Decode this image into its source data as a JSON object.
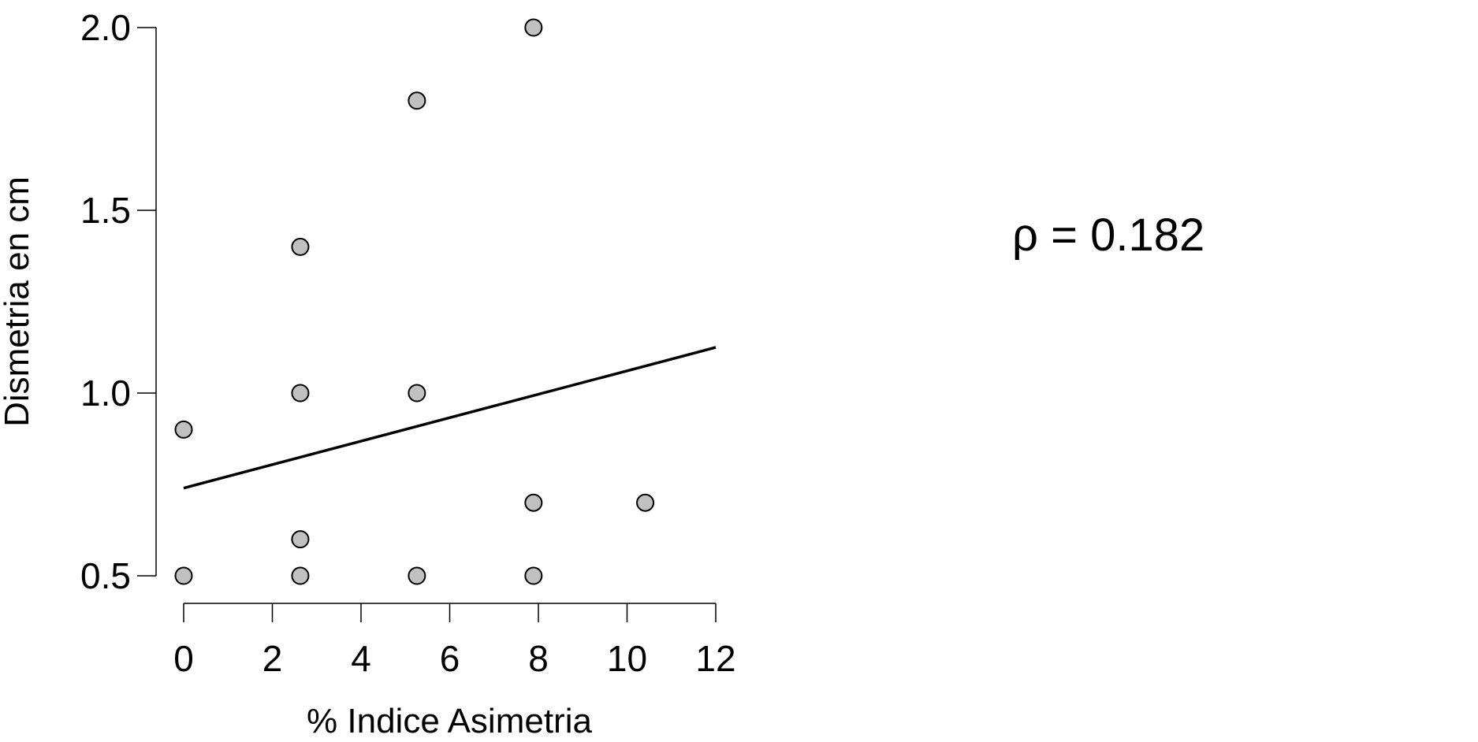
{
  "chart_data": {
    "type": "scatter",
    "xlabel": "% Indice Asimetria",
    "ylabel": "Dismetria en cm",
    "xlim": [
      0,
      12
    ],
    "ylim": [
      0.5,
      2.0
    ],
    "x_ticks": [
      0,
      2,
      4,
      6,
      8,
      10,
      12
    ],
    "y_ticks": [
      0.5,
      1.0,
      1.5,
      2.0
    ],
    "x_tick_labels": [
      "0",
      "2",
      "4",
      "6",
      "8",
      "10",
      "12"
    ],
    "y_tick_labels": [
      "0.5",
      "1.0",
      "1.5",
      "2.0"
    ],
    "grid": false,
    "points": [
      {
        "x": 0.0,
        "y": 0.9
      },
      {
        "x": 0.0,
        "y": 0.5
      },
      {
        "x": 2.63,
        "y": 1.4
      },
      {
        "x": 2.63,
        "y": 1.0
      },
      {
        "x": 2.63,
        "y": 0.6
      },
      {
        "x": 2.63,
        "y": 0.5
      },
      {
        "x": 5.26,
        "y": 1.8
      },
      {
        "x": 5.26,
        "y": 1.0
      },
      {
        "x": 5.26,
        "y": 0.5
      },
      {
        "x": 7.89,
        "y": 2.0
      },
      {
        "x": 7.89,
        "y": 0.7
      },
      {
        "x": 7.89,
        "y": 0.5
      },
      {
        "x": 10.41,
        "y": 0.7
      }
    ],
    "fit_line": {
      "x": [
        0,
        12
      ],
      "y": [
        0.74,
        1.125
      ]
    },
    "point_fill": "#c0c0c0",
    "point_stroke": "#000000",
    "annotation": "ρ = 0.182"
  }
}
